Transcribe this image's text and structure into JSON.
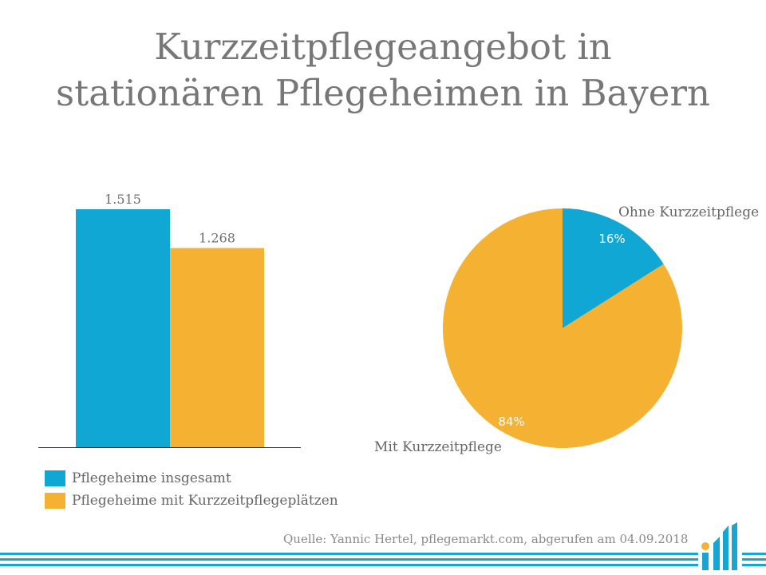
{
  "title": {
    "line1": "Kurzzeitpflegeangebot in",
    "line2": "stationären Pflegeheimen in Bayern"
  },
  "colors": {
    "blue": "#11a7d4",
    "orange": "#f5b131",
    "axis": "#333333"
  },
  "chart_data": [
    {
      "type": "bar",
      "categories": [
        "Pflegeheime insgesamt",
        "Pflegeheime mit Kurzzeitpflegeplätzen"
      ],
      "values": [
        1515,
        1268
      ],
      "value_labels": [
        "1.515",
        "1.268"
      ],
      "ylim": [
        0,
        1515
      ]
    },
    {
      "type": "pie",
      "labels": [
        "Ohne Kurzzeitpflege",
        "Mit Kurzzeitpflege"
      ],
      "values": [
        16,
        84
      ],
      "value_labels": [
        "16%",
        "84%"
      ]
    }
  ],
  "legend": [
    {
      "label": "Pflegeheime insgesamt"
    },
    {
      "label": "Pflegeheime mit Kurzzeitpflegeplätzen"
    }
  ],
  "source": "Quelle: Yannic Hertel, pflegemarkt.com, abgerufen am 04.09.2018",
  "logo_icon": "pflegemarkt-logo-icon"
}
